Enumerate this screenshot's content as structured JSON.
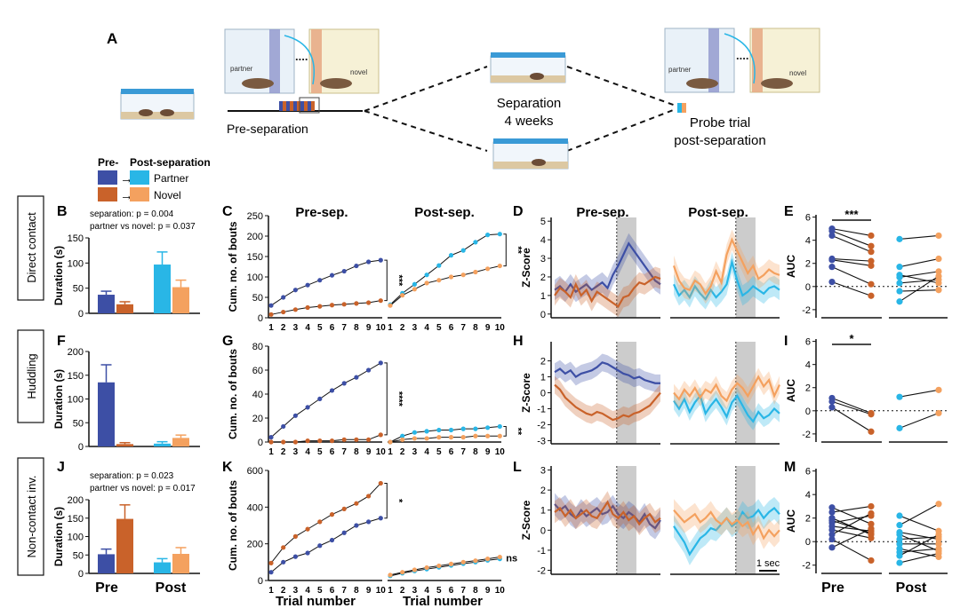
{
  "panel_letters": {
    "A": "A",
    "B": "B",
    "C": "C",
    "D": "D",
    "E": "E",
    "F": "F",
    "G": "G",
    "H": "H",
    "I": "I",
    "J": "J",
    "K": "K",
    "L": "L",
    "M": "M"
  },
  "schematic": {
    "partner_label": "partner",
    "novel_label": "novel",
    "pre_separation_label": "Pre-separation",
    "separation_line1": "Separation",
    "separation_line2": "4 weeks",
    "probe_line1": "Probe trial",
    "probe_line2": "post-separation",
    "ellipsis": "...."
  },
  "legend": {
    "pre_label": "Pre-",
    "post_label": "Post-separation",
    "partner_label": "Partner",
    "novel_label": "Novel",
    "arrow": "→"
  },
  "colors": {
    "pre_partner": "#3d4fa5",
    "pre_novel": "#c9622a",
    "post_partner": "#29b6e6",
    "post_novel": "#f4a15f",
    "gray_bar": "#cccccc"
  },
  "row_labels": {
    "direct": "Direct contact",
    "huddling": "Huddling",
    "noncontact": "Non-contact inv."
  },
  "common": {
    "duration_ylabel": "Duration (s)",
    "cum_ylabel": "Cum. no. of bouts",
    "zscore_ylabel": "Z-Score",
    "auc_ylabel": "AUC",
    "pre_sep_title": "Pre-sep.",
    "post_sep_title": "Post-sep.",
    "trial_xlabel": "Trial number",
    "group_pre": "Pre",
    "group_post": "Post",
    "scalebar_label": "1 sec",
    "trial_ticks": [
      "1",
      "2",
      "3",
      "4",
      "5",
      "6",
      "7",
      "8",
      "9",
      "10"
    ]
  },
  "stats": {
    "B_line1": "separation: p = 0.004",
    "B_line2": "partner vs novel: p = 0.037",
    "J_line1": "separation: p = 0.023",
    "J_line2": "partner vs novel: p = 0.017",
    "C_pre": "***",
    "C_post": "**",
    "G_pre": "****",
    "G_post": "**",
    "K_pre": "*",
    "K_post": "ns",
    "E_pre": "***",
    "I_pre": "*"
  },
  "chart_data": [
    {
      "id": "B",
      "type": "bar",
      "ylabel": "Duration (s)",
      "ylim": [
        0,
        150
      ],
      "yticks": [
        "0",
        "50",
        "100",
        "150"
      ],
      "series": [
        {
          "name": "Pre partner",
          "value": 37,
          "err": 7
        },
        {
          "name": "Pre novel",
          "value": 18,
          "err": 5
        },
        {
          "name": "Post partner",
          "value": 97,
          "err": 25
        },
        {
          "name": "Post novel",
          "value": 52,
          "err": 14
        }
      ]
    },
    {
      "id": "F",
      "type": "bar",
      "ylabel": "Duration (s)",
      "ylim": [
        0,
        200
      ],
      "yticks": [
        "0",
        "50",
        "100",
        "150",
        "200"
      ],
      "series": [
        {
          "name": "Pre partner",
          "value": 135,
          "err": 37
        },
        {
          "name": "Pre novel",
          "value": 5,
          "err": 3
        },
        {
          "name": "Post partner",
          "value": 6,
          "err": 4
        },
        {
          "name": "Post novel",
          "value": 18,
          "err": 6
        }
      ]
    },
    {
      "id": "J",
      "type": "bar",
      "ylabel": "Duration (s)",
      "ylim": [
        0,
        200
      ],
      "yticks": [
        "0",
        "50",
        "100",
        "150",
        "200"
      ],
      "series": [
        {
          "name": "Pre partner",
          "value": 52,
          "err": 14
        },
        {
          "name": "Pre novel",
          "value": 148,
          "err": 38
        },
        {
          "name": "Post partner",
          "value": 30,
          "err": 10
        },
        {
          "name": "Post novel",
          "value": 53,
          "err": 17
        }
      ]
    },
    {
      "id": "C",
      "type": "line",
      "ylabel": "Cum. no. of bouts",
      "ylim": [
        0,
        250
      ],
      "yticks": [
        "0",
        "50",
        "100",
        "150",
        "200",
        "250"
      ],
      "x": [
        1,
        2,
        3,
        4,
        5,
        6,
        7,
        8,
        9,
        10
      ],
      "pre": [
        {
          "name": "Pre partner",
          "values": [
            30,
            50,
            68,
            80,
            92,
            104,
            114,
            127,
            137,
            141
          ]
        },
        {
          "name": "Pre novel",
          "values": [
            8,
            14,
            20,
            25,
            28,
            31,
            33,
            35,
            37,
            42
          ]
        }
      ],
      "post": [
        {
          "name": "Post partner",
          "values": [
            32,
            60,
            82,
            105,
            128,
            153,
            165,
            185,
            203,
            205
          ]
        },
        {
          "name": "Post novel",
          "values": [
            30,
            55,
            70,
            85,
            92,
            100,
            105,
            112,
            120,
            127
          ]
        }
      ]
    },
    {
      "id": "G",
      "type": "line",
      "ylabel": "Cum. no. of bouts",
      "ylim": [
        0,
        80
      ],
      "yticks": [
        "0",
        "20",
        "40",
        "60",
        "80"
      ],
      "x": [
        1,
        2,
        3,
        4,
        5,
        6,
        7,
        8,
        9,
        10
      ],
      "pre": [
        {
          "name": "Pre partner",
          "values": [
            4,
            13,
            22,
            29,
            36,
            43,
            49,
            54,
            60,
            66
          ]
        },
        {
          "name": "Pre novel",
          "values": [
            0,
            0,
            0,
            1,
            1,
            1,
            2,
            2,
            2,
            6
          ]
        }
      ],
      "post": [
        {
          "name": "Post partner",
          "values": [
            0,
            5,
            8,
            9,
            10,
            10,
            11,
            11,
            12,
            13
          ]
        },
        {
          "name": "Post novel",
          "values": [
            0,
            2,
            3,
            3,
            4,
            4,
            4,
            5,
            5,
            5
          ]
        }
      ]
    },
    {
      "id": "K",
      "type": "line",
      "ylabel": "Cum. no. of bouts",
      "ylim": [
        0,
        600
      ],
      "yticks": [
        "0",
        "200",
        "400",
        "600"
      ],
      "x": [
        1,
        2,
        3,
        4,
        5,
        6,
        7,
        8,
        9,
        10
      ],
      "pre": [
        {
          "name": "Pre partner",
          "values": [
            45,
            100,
            130,
            150,
            190,
            220,
            260,
            300,
            320,
            340
          ]
        },
        {
          "name": "Pre novel",
          "values": [
            95,
            180,
            240,
            280,
            320,
            360,
            390,
            420,
            460,
            530
          ]
        }
      ],
      "post": [
        {
          "name": "Post partner",
          "values": [
            25,
            40,
            52,
            62,
            72,
            82,
            92,
            100,
            110,
            118
          ]
        },
        {
          "name": "Post novel",
          "values": [
            30,
            45,
            58,
            70,
            80,
            90,
            100,
            108,
            118,
            128
          ]
        }
      ]
    },
    {
      "id": "D",
      "type": "line",
      "ylabel": "Z-Score",
      "ylim": [
        -0.2,
        5.2
      ],
      "yticks": [
        "0",
        "1",
        "2",
        "3",
        "4",
        "5"
      ],
      "ytick_values": [
        0,
        1,
        2,
        3,
        4,
        5
      ],
      "pre": [
        {
          "name": "Pre partner",
          "values": [
            1.3,
            1.5,
            1.2,
            1.6,
            1.2,
            1.4,
            1.6,
            1.3,
            1.5,
            1.7,
            1.4,
            2.1,
            2.6,
            3.2,
            3.8,
            3.4,
            3.0,
            2.6,
            2.2,
            1.8,
            1.6
          ]
        },
        {
          "name": "Pre novel",
          "values": [
            1.0,
            1.4,
            1.2,
            0.9,
            1.6,
            1.0,
            1.3,
            0.7,
            1.2,
            1.0,
            0.8,
            0.6,
            0.4,
            0.9,
            1.0,
            1.4,
            1.7,
            1.6,
            1.8,
            2.0,
            1.9
          ]
        }
      ],
      "post": [
        {
          "name": "Post partner",
          "values": [
            1.6,
            1.0,
            1.3,
            0.9,
            1.5,
            1.1,
            0.8,
            1.3,
            0.9,
            1.2,
            1.6,
            2.8,
            1.8,
            1.0,
            1.2,
            1.5,
            1.3,
            1.1,
            1.4,
            1.5,
            1.3
          ]
        },
        {
          "name": "Post novel",
          "values": [
            2.6,
            1.8,
            1.4,
            1.3,
            1.8,
            1.6,
            1.1,
            1.5,
            2.3,
            1.7,
            3.2,
            4.0,
            3.4,
            2.8,
            2.2,
            2.6,
            1.9,
            2.1,
            2.4,
            2.2,
            2.1
          ]
        }
      ]
    },
    {
      "id": "H",
      "type": "line",
      "ylabel": "Z-Score",
      "ylim": [
        -3.2,
        3.2
      ],
      "yticks": [
        "2",
        "1",
        "0",
        "-1",
        "-2",
        "-3"
      ],
      "ytick_values": [
        2,
        1,
        0,
        -1,
        -2,
        -3
      ],
      "pre": [
        {
          "name": "Pre partner",
          "values": [
            1.3,
            1.5,
            1.2,
            1.4,
            1.0,
            1.2,
            1.3,
            1.4,
            1.6,
            1.9,
            1.8,
            1.6,
            1.4,
            1.2,
            1.1,
            0.9,
            1.0,
            0.8,
            0.7,
            0.6,
            0.6
          ]
        },
        {
          "name": "Pre novel",
          "values": [
            0.5,
            0.2,
            -0.3,
            -0.6,
            -0.9,
            -1.1,
            -1.3,
            -1.4,
            -1.2,
            -1.3,
            -1.5,
            -1.7,
            -1.6,
            -1.4,
            -1.5,
            -1.3,
            -1.2,
            -1.0,
            -0.8,
            -0.4,
            0.0
          ]
        }
      ],
      "post": [
        {
          "name": "Post partner",
          "values": [
            -0.5,
            -1.0,
            -0.4,
            -1.2,
            -0.6,
            -0.2,
            -1.3,
            -0.8,
            -0.4,
            -0.9,
            -1.5,
            -0.6,
            -0.2,
            -0.8,
            -1.4,
            -1.8,
            -1.2,
            -1.6,
            -1.4,
            -1.0,
            -1.3
          ]
        },
        {
          "name": "Post novel",
          "values": [
            0.0,
            -0.4,
            0.2,
            -0.2,
            0.3,
            -0.3,
            0.2,
            0.0,
            0.5,
            -0.2,
            -0.5,
            0.2,
            0.6,
            0.3,
            -0.2,
            0.4,
            1.0,
            0.4,
            0.8,
            -0.2,
            0.5
          ]
        }
      ]
    },
    {
      "id": "L",
      "type": "line",
      "ylabel": "Z-Score",
      "ylim": [
        -2.2,
        3.2
      ],
      "yticks": [
        "3",
        "2",
        "1",
        "0",
        "-1",
        "-2"
      ],
      "ytick_values": [
        3,
        2,
        1,
        0,
        -1,
        -2
      ],
      "pre": [
        {
          "name": "Pre partner",
          "values": [
            1.3,
            1.0,
            1.2,
            0.8,
            0.6,
            1.0,
            0.7,
            0.9,
            1.1,
            0.8,
            0.9,
            1.2,
            0.8,
            0.6,
            0.9,
            0.7,
            0.4,
            0.8,
            0.3,
            0.1,
            0.5
          ]
        },
        {
          "name": "Pre novel",
          "values": [
            0.9,
            1.1,
            0.7,
            1.0,
            0.6,
            0.8,
            1.0,
            0.7,
            0.6,
            1.0,
            1.4,
            0.8,
            0.6,
            0.9,
            0.5,
            0.7,
            0.3,
            0.6,
            0.8,
            0.4,
            0.6
          ]
        }
      ],
      "post": [
        {
          "name": "Post partner",
          "values": [
            0.2,
            -0.2,
            -0.6,
            -1.2,
            -0.8,
            -0.4,
            -0.2,
            0.1,
            0.0,
            0.3,
            0.6,
            0.2,
            0.4,
            0.9,
            0.6,
            0.7,
            1.0,
            0.6,
            0.9,
            1.1,
            0.8
          ]
        },
        {
          "name": "Post novel",
          "values": [
            1.0,
            0.7,
            0.4,
            0.6,
            0.8,
            0.4,
            0.6,
            0.9,
            0.5,
            0.3,
            0.6,
            0.3,
            0.5,
            0.2,
            0.4,
            -0.2,
            0.2,
            -0.4,
            0.0,
            -0.3,
            0.0
          ]
        }
      ]
    },
    {
      "id": "E",
      "type": "scatter",
      "ylabel": "AUC",
      "ylim": [
        -2.7,
        6.2
      ],
      "yticks": [
        "6",
        "4",
        "2",
        "0",
        "-2"
      ],
      "ytick_values": [
        6,
        4,
        2,
        0,
        -2
      ],
      "pre_pairs": [
        [
          5.0,
          4.4
        ],
        [
          4.8,
          3.5
        ],
        [
          4.4,
          3.0
        ],
        [
          2.4,
          2.2
        ],
        [
          2.3,
          1.8
        ],
        [
          1.7,
          0.2
        ],
        [
          0.4,
          -0.8
        ]
      ],
      "post_pairs": [
        [
          4.1,
          4.4
        ],
        [
          1.7,
          2.4
        ],
        [
          1.0,
          0.3
        ],
        [
          0.8,
          1.3
        ],
        [
          0.3,
          0.6
        ],
        [
          -0.4,
          -0.3
        ],
        [
          -1.3,
          0.9
        ]
      ]
    },
    {
      "id": "I",
      "type": "scatter",
      "ylabel": "AUC",
      "ylim": [
        -2.7,
        6.2
      ],
      "yticks": [
        "6",
        "4",
        "2",
        "0",
        "-2"
      ],
      "ytick_values": [
        6,
        4,
        2,
        0,
        -2
      ],
      "pre_pairs": [
        [
          1.1,
          -0.2
        ],
        [
          0.8,
          -0.3
        ],
        [
          0.3,
          -1.8
        ]
      ],
      "post_pairs": [
        [
          1.2,
          1.8
        ],
        [
          -1.5,
          -0.2
        ]
      ]
    },
    {
      "id": "M",
      "type": "scatter",
      "ylabel": "AUC",
      "ylim": [
        -2.7,
        6.2
      ],
      "yticks": [
        "6",
        "4",
        "2",
        "0",
        "-2"
      ],
      "ytick_values": [
        6,
        4,
        2,
        0,
        -2
      ],
      "pre_pairs": [
        [
          2.9,
          1.5
        ],
        [
          2.5,
          3.0
        ],
        [
          2.0,
          0.6
        ],
        [
          1.6,
          2.2
        ],
        [
          1.3,
          0.9
        ],
        [
          1.0,
          0.3
        ],
        [
          0.6,
          2.4
        ],
        [
          0.2,
          -1.6
        ],
        [
          -0.5,
          1.1
        ],
        [
          1.8,
          0.7
        ]
      ],
      "post_pairs": [
        [
          2.2,
          0.9
        ],
        [
          1.4,
          3.2
        ],
        [
          0.6,
          -0.8
        ],
        [
          0.2,
          0.4
        ],
        [
          -0.2,
          -0.2
        ],
        [
          -0.6,
          -1.3
        ],
        [
          -1.2,
          0.6
        ],
        [
          -1.8,
          -1.0
        ],
        [
          0.8,
          0.2
        ],
        [
          -0.9,
          -0.6
        ]
      ]
    }
  ]
}
